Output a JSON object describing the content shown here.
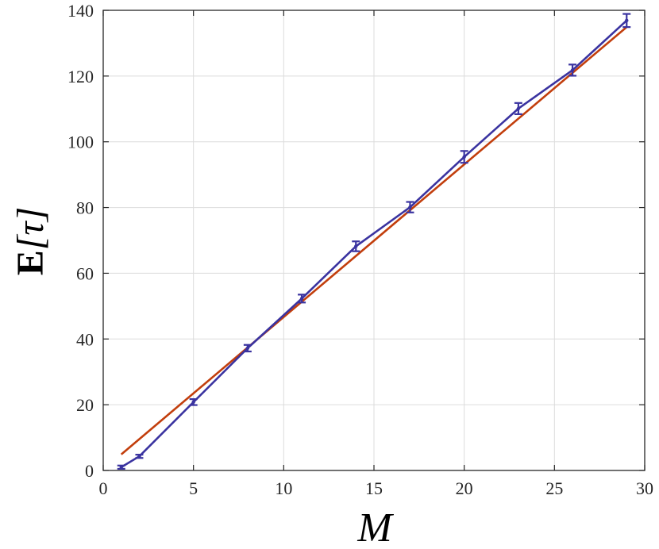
{
  "chart_data": {
    "type": "line",
    "xlabel": "M",
    "ylabel_bold": "E",
    "ylabel_rest": "[τ]",
    "xlim": [
      0,
      30
    ],
    "ylim": [
      0,
      140
    ],
    "xticks": [
      0,
      5,
      10,
      15,
      20,
      25,
      30
    ],
    "yticks": [
      0,
      20,
      40,
      60,
      80,
      100,
      120,
      140
    ],
    "grid": true,
    "series": [
      {
        "kind": "errorbar-line",
        "color": "#3a33a0",
        "x": [
          1,
          2,
          5,
          8,
          11,
          14,
          17,
          20,
          23,
          26,
          29
        ],
        "values": [
          1,
          4.3,
          20.8,
          37.2,
          52.3,
          68.2,
          80.1,
          95.4,
          110.1,
          121.8,
          136.9
        ],
        "errors": [
          0.5,
          0.5,
          0.9,
          1.0,
          1.2,
          1.5,
          1.6,
          1.8,
          1.7,
          1.7,
          2.0
        ]
      },
      {
        "kind": "fit-line",
        "color": "#c23e0c",
        "x": [
          1,
          29
        ],
        "values": [
          4.9,
          134.9
        ]
      }
    ]
  }
}
